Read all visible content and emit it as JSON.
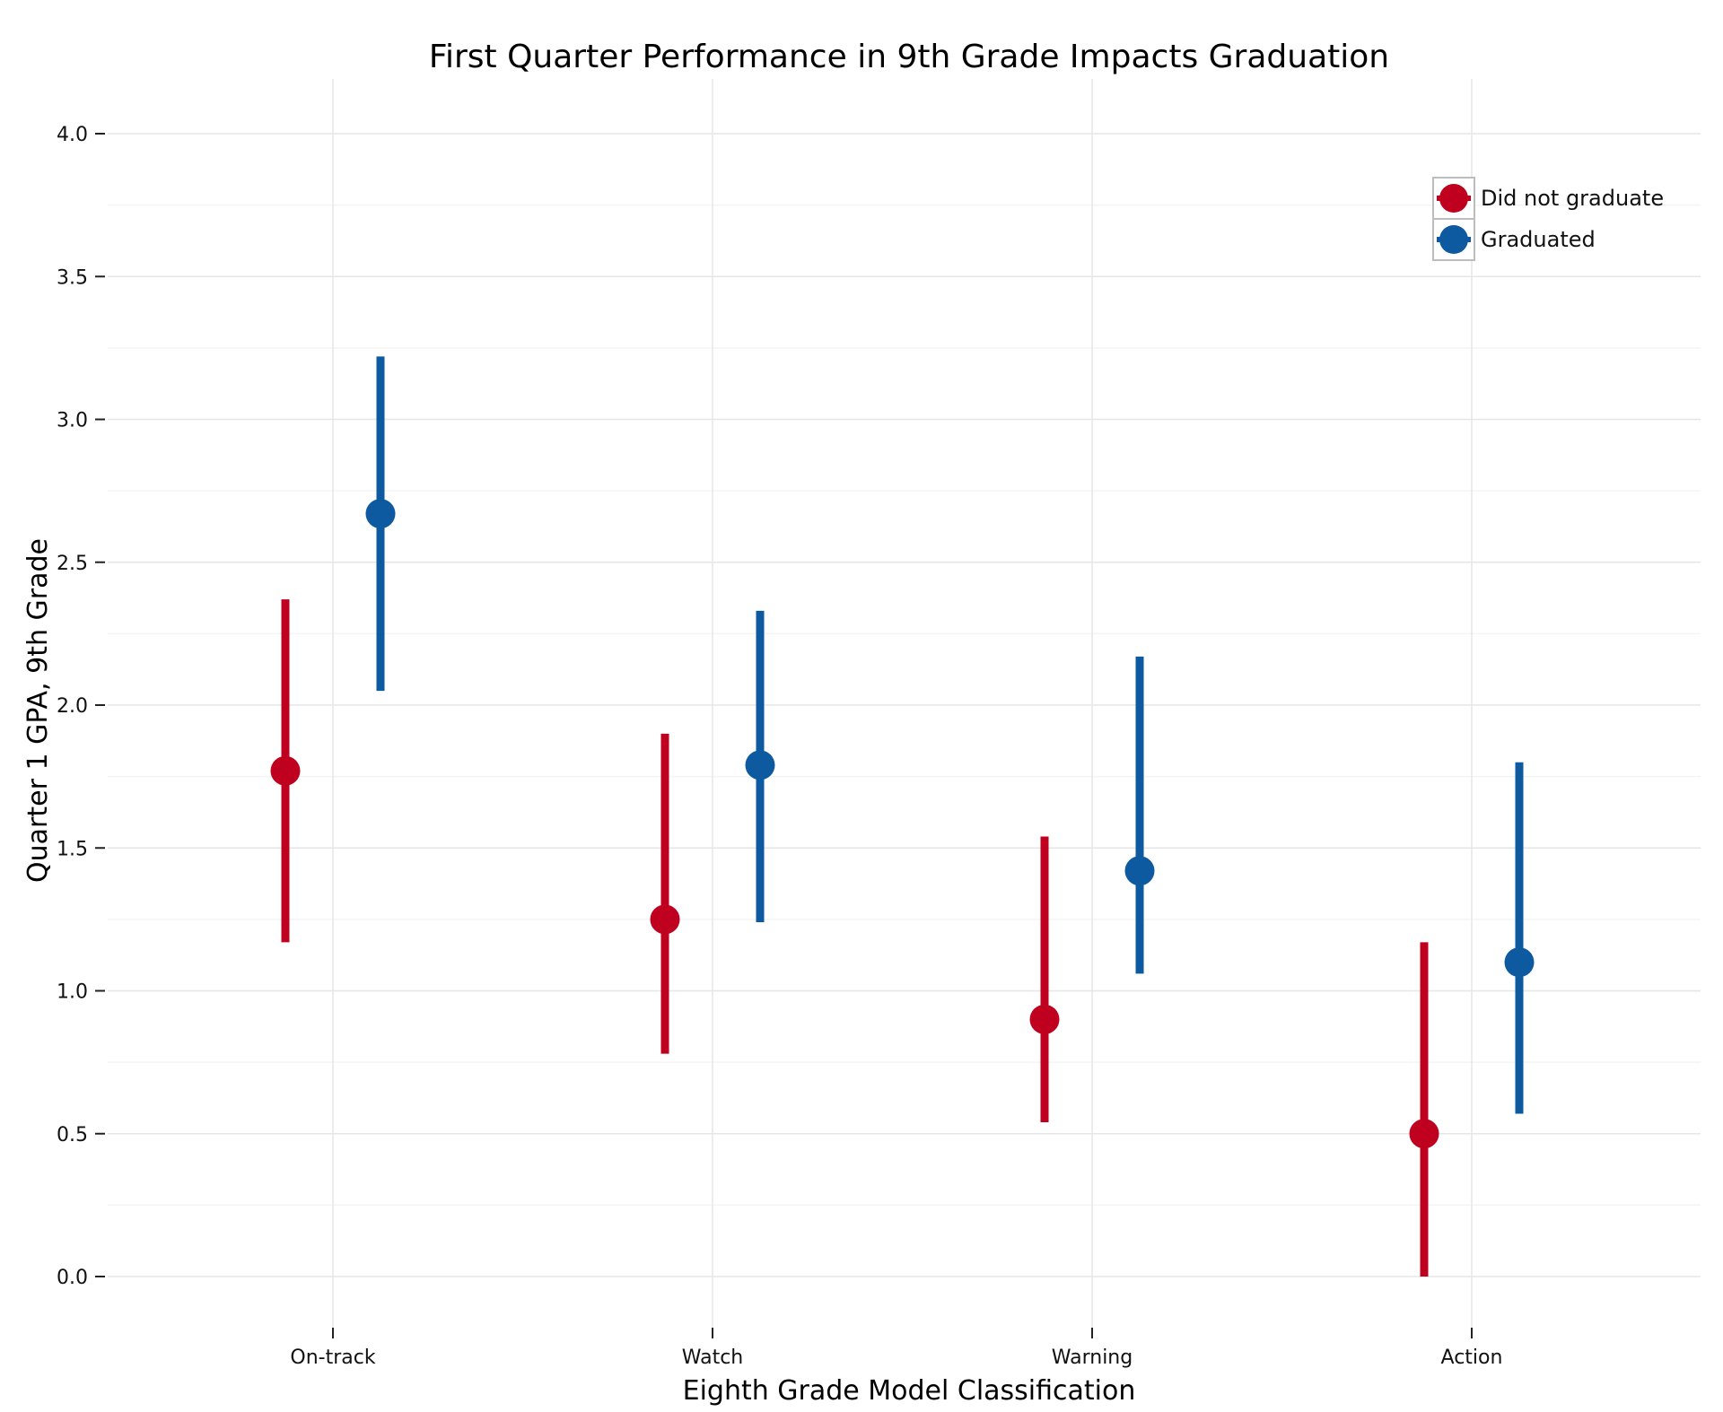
{
  "chart_data": {
    "type": "scatter",
    "title": "First Quarter Performance in 9th Grade Impacts Graduation",
    "xlabel": "Eighth Grade Model Classification",
    "ylabel": "Quarter 1 GPA, 9th Grade",
    "categories": [
      "On-track",
      "Watch",
      "Warning",
      "Action"
    ],
    "ylim": [
      -0.2,
      4.2
    ],
    "yticks": [
      {
        "value": 0.0,
        "label": "0.0"
      },
      {
        "value": 0.5,
        "label": "0.5"
      },
      {
        "value": 1.0,
        "label": "1.0"
      },
      {
        "value": 1.5,
        "label": "1.5"
      },
      {
        "value": 2.0,
        "label": "2.0"
      },
      {
        "value": 2.5,
        "label": "2.5"
      },
      {
        "value": 3.0,
        "label": "3.0"
      },
      {
        "value": 3.5,
        "label": "3.5"
      },
      {
        "value": 4.0,
        "label": "4.0"
      }
    ],
    "grid": true,
    "legend_position": "top-right",
    "series": [
      {
        "name": "Did not graduate",
        "color": "#C0001F",
        "values": [
          1.77,
          1.25,
          0.9,
          0.5
        ],
        "lower": [
          1.17,
          0.78,
          0.54,
          0.0
        ],
        "upper": [
          2.37,
          1.9,
          1.54,
          1.17
        ]
      },
      {
        "name": "Graduated",
        "color": "#0E5AA0",
        "values": [
          2.67,
          1.79,
          1.42,
          1.1
        ],
        "lower": [
          2.05,
          1.24,
          1.06,
          0.57
        ],
        "upper": [
          3.22,
          2.33,
          2.17,
          1.8
        ]
      }
    ]
  }
}
